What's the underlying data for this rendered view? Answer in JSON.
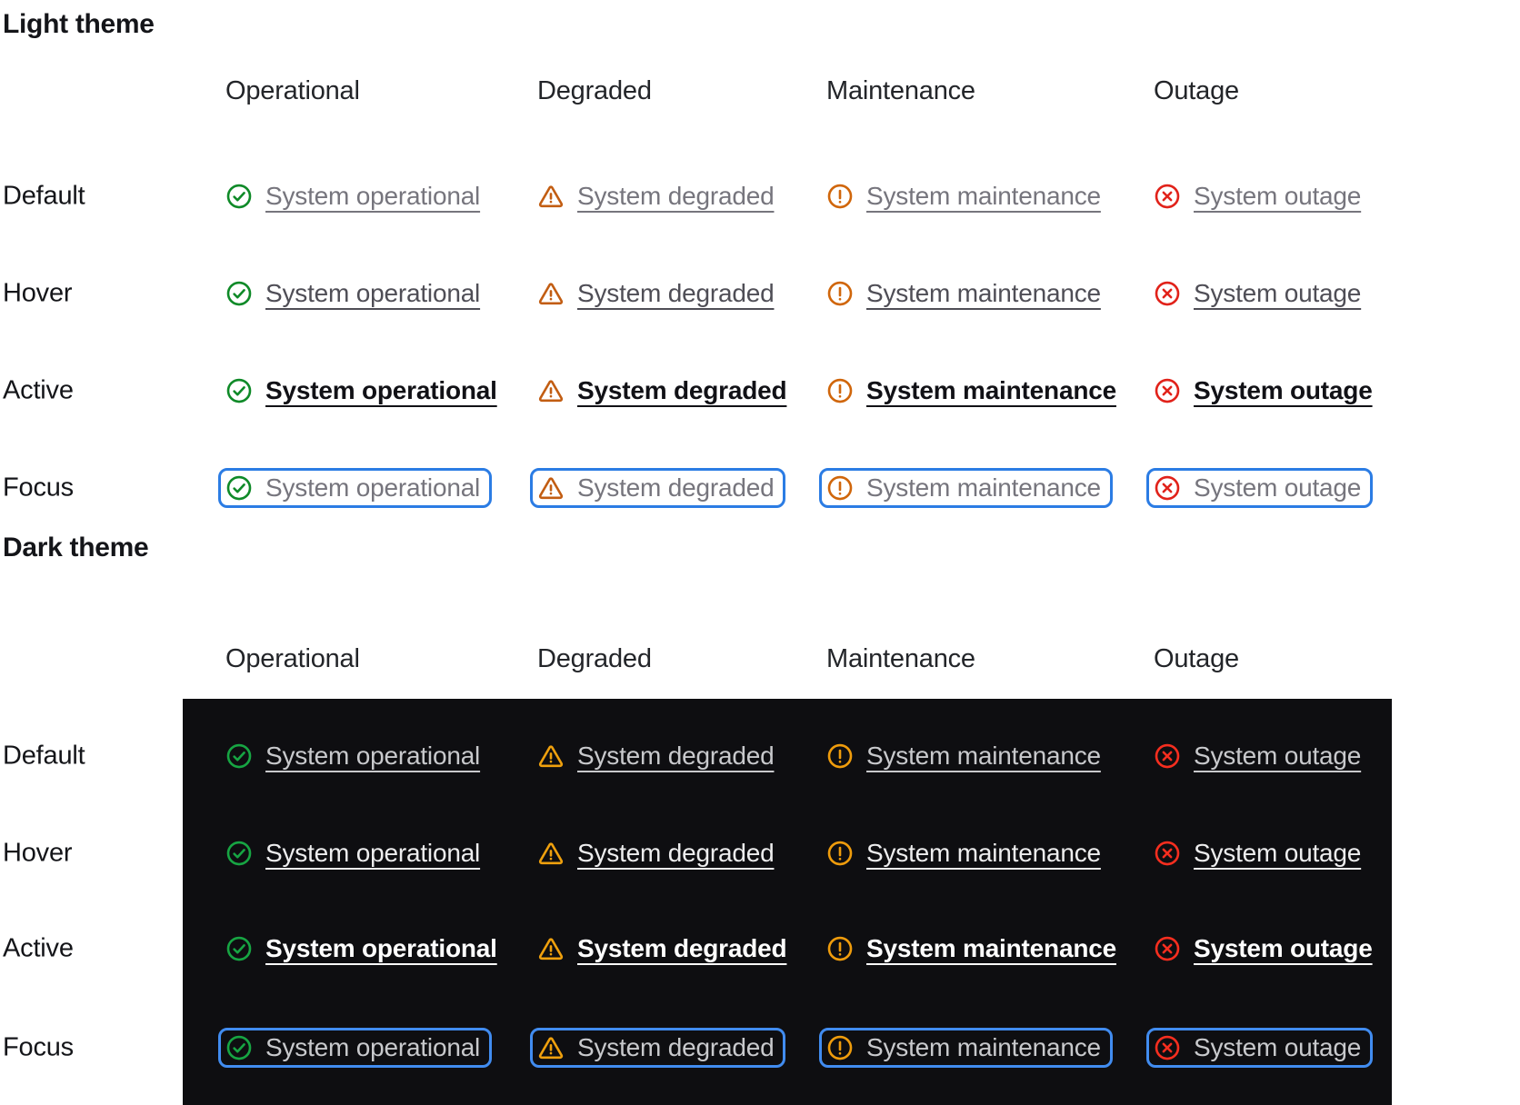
{
  "sections": [
    {
      "id": "light",
      "title": "Light theme",
      "columns": [
        "Operational",
        "Degraded",
        "Maintenance",
        "Outage"
      ],
      "rows": [
        "Default",
        "Hover",
        "Active",
        "Focus"
      ]
    },
    {
      "id": "dark",
      "title": "Dark theme",
      "columns": [
        "Operational",
        "Degraded",
        "Maintenance",
        "Outage"
      ],
      "rows": [
        "Default",
        "Hover",
        "Active",
        "Focus"
      ]
    }
  ],
  "states": [
    {
      "key": "default",
      "label": "Default"
    },
    {
      "key": "hover",
      "label": "Hover"
    },
    {
      "key": "active",
      "label": "Active"
    },
    {
      "key": "focus",
      "label": "Focus"
    }
  ],
  "statuses": [
    {
      "id": "operational",
      "icon": "check-circle",
      "label": "System operational"
    },
    {
      "id": "degraded",
      "icon": "warning-triangle",
      "label": "System degraded"
    },
    {
      "id": "maintenance",
      "icon": "alert-circle",
      "label": "System maintenance"
    },
    {
      "id": "outage",
      "icon": "x-circle",
      "label": "System outage"
    }
  ],
  "colors": {
    "page_bg": "#ffffff",
    "title_text": "#141519",
    "header_text": "#232529",
    "row_label_text": "#141519",
    "dark_panel_bg": "#0e0e11",
    "focus_ring": {
      "light": "#2b7ce4",
      "dark": "#418cf0"
    },
    "link_text": {
      "light": {
        "default": "#76757d",
        "hover": "#4f4e56",
        "active": "#111116",
        "focus": "#76757d"
      },
      "dark": {
        "default": "#c8c9cc",
        "hover": "#ededee",
        "active": "#ffffff",
        "focus": "#c8c9cc"
      }
    },
    "icons": {
      "light": {
        "operational": "#0f8a28",
        "degraded": "#c25d12",
        "maintenance": "#d0660b",
        "outage": "#e1221a"
      },
      "dark": {
        "operational": "#17a543",
        "degraded": "#efa00d",
        "maintenance": "#ef9c0c",
        "outage": "#f62e1f"
      }
    }
  }
}
